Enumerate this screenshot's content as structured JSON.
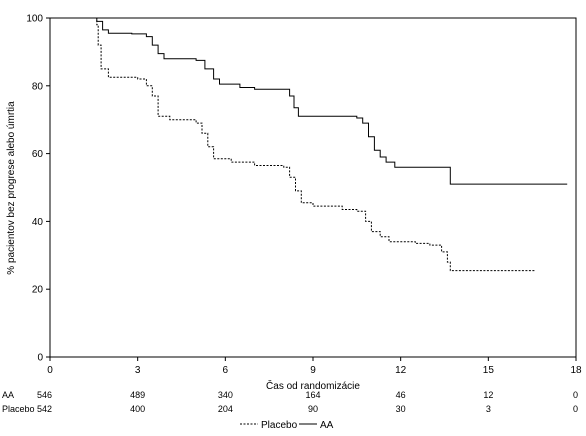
{
  "chart_data": {
    "type": "line",
    "ylabel": "% pacientov bez progrese alebo úmrtia",
    "xlabel": "Čas od randomizácie",
    "xlim": [
      0,
      18
    ],
    "ylim": [
      0,
      100
    ],
    "xticks": [
      0,
      3,
      6,
      9,
      12,
      15,
      18
    ],
    "yticks": [
      0,
      20,
      40,
      60,
      80,
      100
    ],
    "grid": false,
    "legend_position": "bottom-center",
    "series": [
      {
        "name": "AA",
        "line_style": "solid",
        "points": [
          [
            0,
            100
          ],
          [
            1.6,
            99
          ],
          [
            1.8,
            96.5
          ],
          [
            2.0,
            95.5
          ],
          [
            2.8,
            95.3
          ],
          [
            3.3,
            94.5
          ],
          [
            3.5,
            92
          ],
          [
            3.7,
            89.5
          ],
          [
            3.9,
            88
          ],
          [
            5.0,
            87.5
          ],
          [
            5.3,
            85
          ],
          [
            5.6,
            82
          ],
          [
            5.8,
            80.5
          ],
          [
            6.5,
            79.5
          ],
          [
            7.0,
            79
          ],
          [
            8.1,
            79
          ],
          [
            8.2,
            77
          ],
          [
            8.35,
            73.5
          ],
          [
            8.5,
            71
          ],
          [
            9.5,
            71
          ],
          [
            10.5,
            70.5
          ],
          [
            10.7,
            69
          ],
          [
            10.9,
            65
          ],
          [
            11.1,
            61
          ],
          [
            11.3,
            59
          ],
          [
            11.5,
            57.5
          ],
          [
            11.8,
            56
          ],
          [
            13.6,
            56
          ],
          [
            13.7,
            51
          ],
          [
            17.7,
            51
          ]
        ]
      },
      {
        "name": "Placebo",
        "line_style": "dashed",
        "points": [
          [
            0,
            100
          ],
          [
            1.6,
            98
          ],
          [
            1.65,
            92
          ],
          [
            1.75,
            85
          ],
          [
            2.0,
            82.5
          ],
          [
            3.0,
            82
          ],
          [
            3.3,
            80
          ],
          [
            3.5,
            77
          ],
          [
            3.7,
            71
          ],
          [
            4.1,
            70
          ],
          [
            5.0,
            69
          ],
          [
            5.2,
            66
          ],
          [
            5.4,
            62
          ],
          [
            5.6,
            58.5
          ],
          [
            6.2,
            57.5
          ],
          [
            7.0,
            56.5
          ],
          [
            8.0,
            56
          ],
          [
            8.2,
            53
          ],
          [
            8.4,
            49
          ],
          [
            8.6,
            45.5
          ],
          [
            9.0,
            44.5
          ],
          [
            10.0,
            43.5
          ],
          [
            10.5,
            43
          ],
          [
            10.8,
            40
          ],
          [
            11.0,
            37
          ],
          [
            11.3,
            35.5
          ],
          [
            11.6,
            34
          ],
          [
            12.5,
            33.5
          ],
          [
            13.0,
            33
          ],
          [
            13.4,
            31
          ],
          [
            13.6,
            28
          ],
          [
            13.7,
            25.5
          ],
          [
            16.6,
            25.5
          ]
        ]
      }
    ],
    "risk_table": [
      {
        "label": "AA",
        "values": [
          "546",
          "489",
          "340",
          "164",
          "46",
          "12",
          "0"
        ]
      },
      {
        "label": "Placebo",
        "values": [
          "542",
          "400",
          "204",
          "90",
          "30",
          "3",
          "0"
        ]
      }
    ]
  },
  "legend": [
    {
      "name": "Placebo",
      "line_style": "dashed"
    },
    {
      "name": "AA",
      "line_style": "solid"
    }
  ]
}
